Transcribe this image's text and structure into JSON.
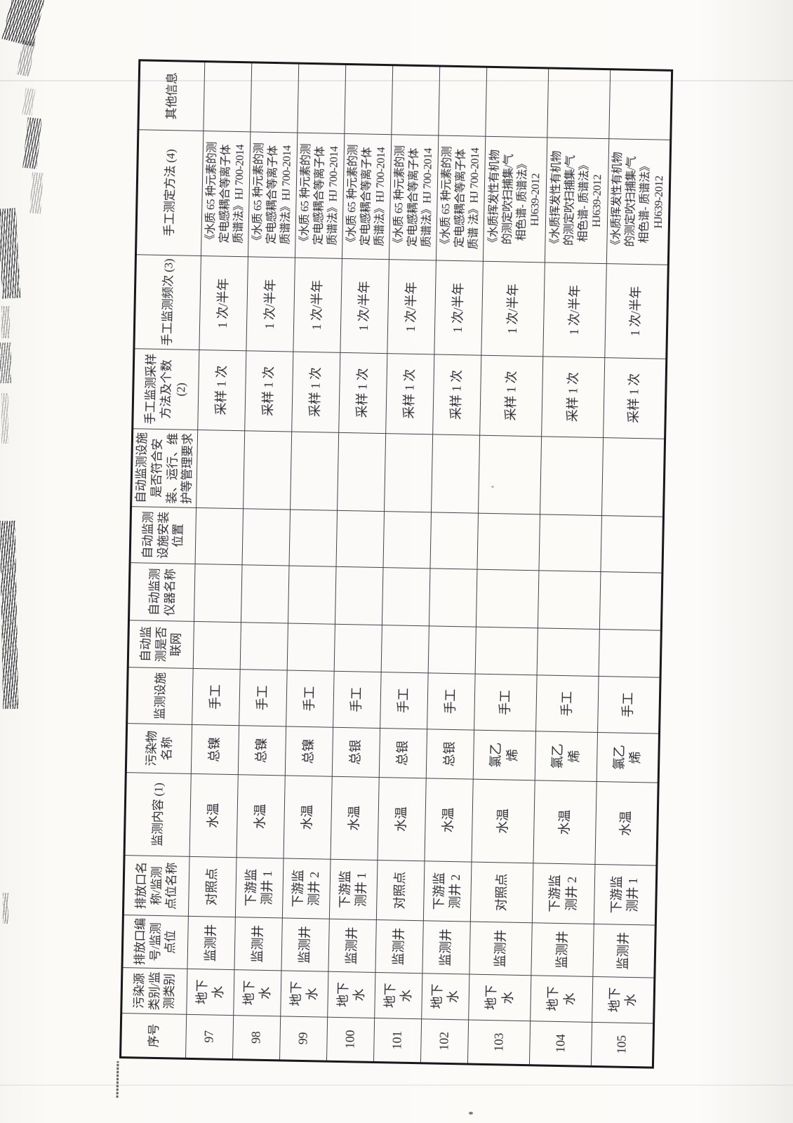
{
  "colors": {
    "paper": "#fcfbf9",
    "ink": "#2e2f36",
    "grid_line": "#43434b",
    "outer_border": "#17171c"
  },
  "table": {
    "columns": [
      {
        "id": "index",
        "label": "序号"
      },
      {
        "id": "source-category",
        "label": "污染源\n类别/监\n测类别"
      },
      {
        "id": "outlet-id",
        "label": "排放口编\n号/监测\n点位"
      },
      {
        "id": "outlet-name",
        "label": "排放口名\n称/监测\n点位名称"
      },
      {
        "id": "monitor-content",
        "label": "监测内容 (1)"
      },
      {
        "id": "pollutant-name",
        "label": "污染物\n名称"
      },
      {
        "id": "monitor-facility",
        "label": "监测设施"
      },
      {
        "id": "auto-networked",
        "label": "自动监\n测是否\n联网"
      },
      {
        "id": "auto-instrument",
        "label": "自动监测\n仪器名称"
      },
      {
        "id": "auto-install-position",
        "label": "自动监测\n设施安装\n位置"
      },
      {
        "id": "auto-compliance",
        "label": "自动监测设施\n是否符合安\n装、运行、维\n护等管理要求"
      },
      {
        "id": "manual-sampling",
        "label": "手工监测采样\n方法及个数\n(2)"
      },
      {
        "id": "manual-frequency",
        "label": "手工监测频次 (3)"
      },
      {
        "id": "manual-method",
        "label": "手工测定方法 (4)"
      },
      {
        "id": "other-info",
        "label": "其他信息"
      }
    ],
    "rows": [
      {
        "cells": [
          "97",
          "地下\n水",
          "监测井",
          "对照点",
          "水温",
          "总镍",
          "手工",
          "",
          "",
          "",
          "",
          "采样 1 次",
          "1 次/半年",
          "《水质 65 种元素的测\n定电感耦合等离子体\n质谱法》HJ 700-2014",
          ""
        ]
      },
      {
        "cells": [
          "98",
          "地下\n水",
          "监测井",
          "下游监\n测井 1",
          "水温",
          "总镍",
          "手工",
          "",
          "",
          "",
          "",
          "采样 1 次",
          "1 次/半年",
          "《水质 65 种元素的测\n定电感耦合等离子体\n质谱法》HJ 700-2014",
          ""
        ]
      },
      {
        "cells": [
          "99",
          "地下\n水",
          "监测井",
          "下游监\n测井 2",
          "水温",
          "总镍",
          "手工",
          "",
          "",
          "",
          "",
          "采样 1 次",
          "1 次/半年",
          "《水质 65 种元素的测\n定电感耦合等离子体\n质谱法》HJ 700-2014",
          ""
        ]
      },
      {
        "cells": [
          "100",
          "地下\n水",
          "监测井",
          "下游监\n测井 1",
          "水温",
          "总银",
          "手工",
          "",
          "",
          "",
          "",
          "采样 1 次",
          "1 次/半年",
          "《水质 65 种元素的测\n定电感耦合等离子体\n质谱法》HJ 700-2014",
          ""
        ]
      },
      {
        "cells": [
          "101",
          "地下\n水",
          "监测井",
          "对照点",
          "水温",
          "总银",
          "手工",
          "",
          "",
          "",
          "",
          "采样 1 次",
          "1 次/半年",
          "《水质 65 种元素的测\n定电感耦合等离子体\n质谱法》HJ 700-2014",
          ""
        ]
      },
      {
        "cells": [
          "102",
          "地下\n水",
          "监测井",
          "下游监\n测井 2",
          "水温",
          "总银",
          "手工",
          "",
          "",
          "",
          "",
          "采样 1 次",
          "1 次/半年",
          "《水质 65 种元素的测\n定电感耦合等离子体\n质谱 法》HJ 700-2014",
          ""
        ]
      },
      {
        "cells": [
          "103",
          "地下\n水",
          "监测井",
          "对照点",
          "水温",
          "氯乙\n烯",
          "手工",
          "",
          "",
          "",
          "",
          "采样 1 次",
          "1 次/半年",
          "《水质挥发性有机物\n的测定吹扫捕集/气\n相色谱- 质谱法》\nHJ639-2012",
          ""
        ]
      },
      {
        "cells": [
          "104",
          "地下\n水",
          "监测井",
          "下游监\n测井 2",
          "水温",
          "氯乙\n烯",
          "手工",
          "",
          "",
          "",
          "",
          "采样 1 次",
          "1 次/半年",
          "《水质挥发性有机物\n的测定吹扫捕集/气\n相色谱- 质谱法》\nHJ639-2012",
          ""
        ]
      },
      {
        "cells": [
          "105",
          "地下\n水",
          "监测井",
          "下游监\n测井 1",
          "水温",
          "氯乙\n烯",
          "手工",
          "",
          "",
          "",
          "",
          "采样 1 次",
          "1 次/半年",
          "《水质挥发性有机物\n的测定吹扫捕集/气\n相色谱- 质谱法》\nHJ639-2012",
          ""
        ]
      }
    ]
  }
}
